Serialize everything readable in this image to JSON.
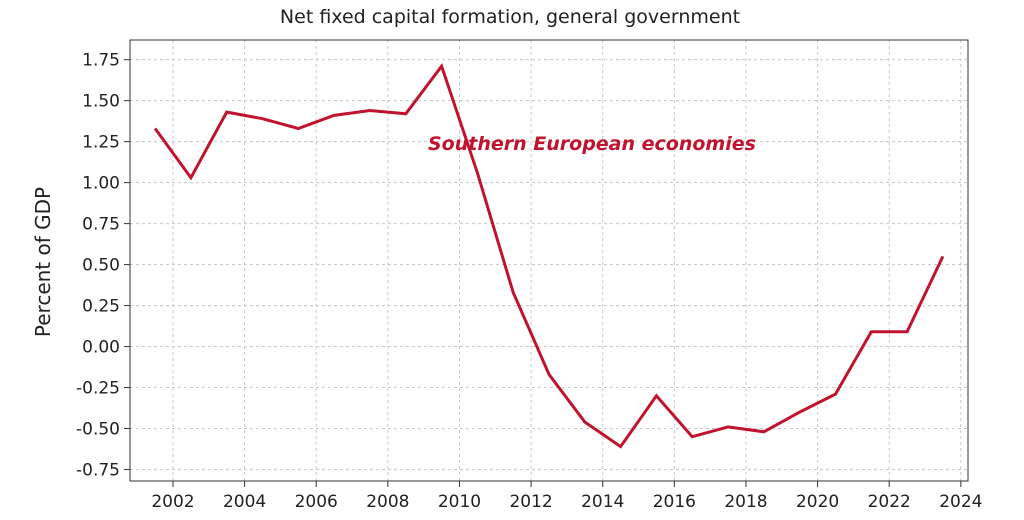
{
  "chart_data": {
    "type": "line",
    "title": "Net fixed capital formation, general government",
    "xlabel": "",
    "ylabel": "Percent of GDP",
    "xlim": [
      2000.8,
      2024.2
    ],
    "ylim": [
      -0.82,
      1.87
    ],
    "x_ticks": [
      2002,
      2004,
      2006,
      2008,
      2010,
      2012,
      2014,
      2016,
      2018,
      2020,
      2022,
      2024
    ],
    "x_tick_labels": [
      "2002",
      "2004",
      "2006",
      "2008",
      "2010",
      "2012",
      "2014",
      "2016",
      "2018",
      "2020",
      "2022",
      "2024"
    ],
    "y_ticks": [
      -0.75,
      -0.5,
      -0.25,
      0.0,
      0.25,
      0.5,
      0.75,
      1.0,
      1.25,
      1.5,
      1.75
    ],
    "y_tick_labels": [
      "-0.75",
      "-0.50",
      "-0.25",
      "0.00",
      "0.25",
      "0.50",
      "0.75",
      "1.00",
      "1.25",
      "1.50",
      "1.75"
    ],
    "grid": true,
    "series": [
      {
        "name": "Southern European economies",
        "color": "#c0142e",
        "x": [
          2001.5,
          2002.5,
          2003.5,
          2004.5,
          2005.5,
          2006.5,
          2007.5,
          2008.5,
          2009.5,
          2010.5,
          2011.5,
          2012.5,
          2013.5,
          2014.5,
          2015.5,
          2016.5,
          2017.5,
          2018.5,
          2019.5,
          2020.5,
          2021.5,
          2022.5,
          2023.5
        ],
        "values": [
          1.33,
          1.03,
          1.43,
          1.39,
          1.33,
          1.41,
          1.44,
          1.42,
          1.71,
          1.06,
          0.33,
          -0.17,
          -0.46,
          -0.61,
          -0.3,
          -0.55,
          -0.49,
          -0.52,
          -0.4,
          -0.29,
          0.09,
          0.09,
          0.55
        ]
      }
    ],
    "annotations": [
      {
        "text": "Southern European economies",
        "x": 2013.7,
        "y": 1.2,
        "color": "#c0142e"
      }
    ]
  }
}
